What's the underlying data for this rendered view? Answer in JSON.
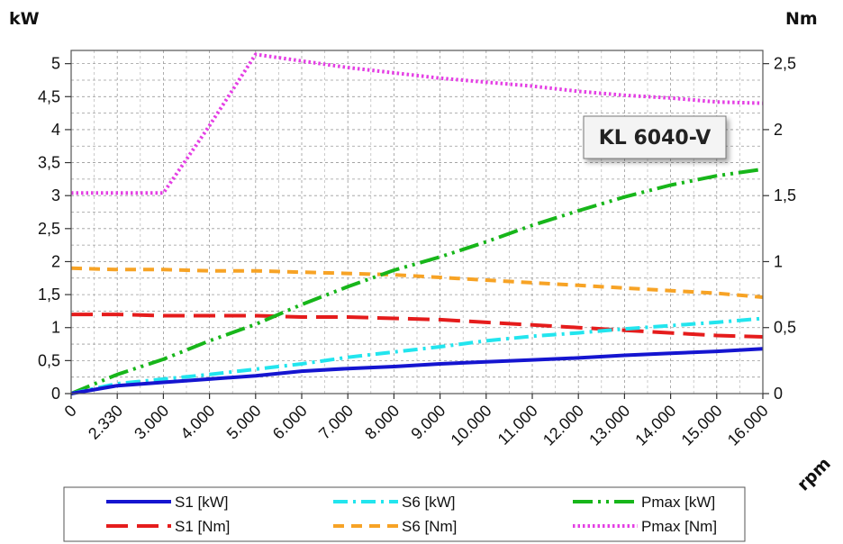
{
  "chart_data": {
    "type": "line",
    "model_label": "KL 6040-V",
    "left_axis_unit": "kW",
    "right_axis_unit": "Nm",
    "x_axis_unit": "rpm",
    "x_tick_labels": [
      "0",
      "2.330",
      "3.000",
      "4.000",
      "5.000",
      "6.000",
      "7.000",
      "8.000",
      "9.000",
      "10.000",
      "11.000",
      "12.000",
      "13.000",
      "14.000",
      "15.000",
      "16.000"
    ],
    "left_ticks": [
      0,
      0.5,
      1,
      1.5,
      2,
      2.5,
      3,
      3.5,
      4,
      4.5,
      5
    ],
    "left_tick_labels": [
      "0",
      "0,5",
      "1",
      "1,5",
      "2",
      "2,5",
      "3",
      "3,5",
      "4",
      "4,5",
      "5"
    ],
    "right_ticks": [
      0,
      0.5,
      1,
      1.5,
      2,
      2.5
    ],
    "right_tick_labels": [
      "0",
      "0,5",
      "1",
      "1,5",
      "2",
      "2,5"
    ],
    "ylim_left": [
      0,
      5.2
    ],
    "ylim_right": [
      0,
      2.6
    ],
    "grid": true,
    "legend_position": "bottom",
    "series": [
      {
        "name": "S1 [kW]",
        "axis": "left",
        "color": "#1515d0",
        "dash": "solid",
        "values": [
          0,
          0.12,
          0.17,
          0.22,
          0.27,
          0.34,
          0.38,
          0.41,
          0.45,
          0.48,
          0.51,
          0.54,
          0.58,
          0.61,
          0.64,
          0.68
        ]
      },
      {
        "name": "S6 [kW]",
        "axis": "left",
        "color": "#22e5ee",
        "dash": "dashdot",
        "values": [
          0,
          0.15,
          0.22,
          0.29,
          0.37,
          0.45,
          0.55,
          0.63,
          0.71,
          0.8,
          0.87,
          0.92,
          0.98,
          1.03,
          1.08,
          1.14
        ]
      },
      {
        "name": "Pmax [kW]",
        "axis": "left",
        "color": "#17b61a",
        "dash": "dashdotdot",
        "values": [
          0,
          0.29,
          0.52,
          0.8,
          1.05,
          1.35,
          1.62,
          1.87,
          2.07,
          2.3,
          2.55,
          2.77,
          2.98,
          3.16,
          3.3,
          3.4
        ]
      },
      {
        "name": "S1 [Nm]",
        "axis": "right",
        "color": "#e51c1c",
        "dash": "longdash",
        "values": [
          0.6,
          0.6,
          0.59,
          0.59,
          0.59,
          0.58,
          0.58,
          0.57,
          0.56,
          0.54,
          0.52,
          0.5,
          0.48,
          0.46,
          0.44,
          0.43
        ]
      },
      {
        "name": "S6 [Nm]",
        "axis": "right",
        "color": "#f7a325",
        "dash": "dash",
        "values": [
          0.95,
          0.94,
          0.94,
          0.93,
          0.93,
          0.92,
          0.91,
          0.9,
          0.88,
          0.86,
          0.84,
          0.82,
          0.8,
          0.78,
          0.76,
          0.73
        ]
      },
      {
        "name": "Pmax [Nm]",
        "axis": "right",
        "color": "#e43fe4",
        "dash": "dot",
        "values": [
          1.52,
          1.52,
          1.52,
          2.03,
          2.57,
          2.52,
          2.47,
          2.43,
          2.39,
          2.36,
          2.33,
          2.29,
          2.26,
          2.24,
          2.21,
          2.2
        ]
      }
    ]
  },
  "legend_layout": [
    [
      "S1 [kW]",
      "S6 [kW]",
      "Pmax [kW]"
    ],
    [
      "S1 [Nm]",
      "S6 [Nm]",
      "Pmax [Nm]"
    ]
  ]
}
